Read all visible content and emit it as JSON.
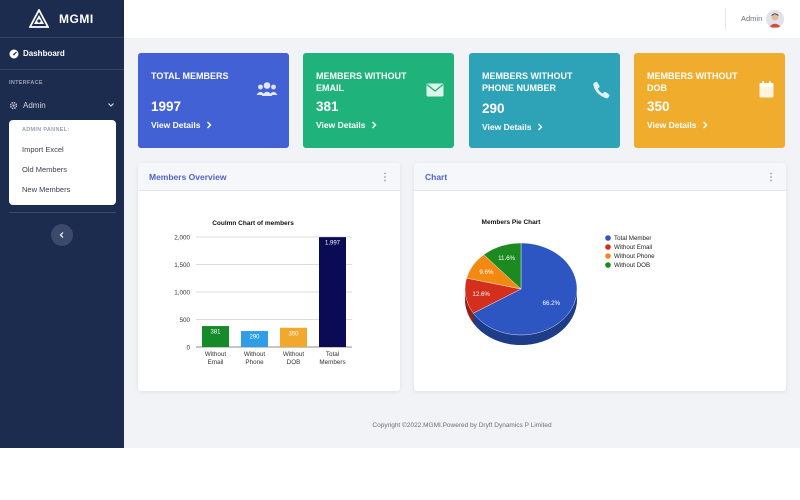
{
  "brand": {
    "name": "MGMI"
  },
  "sidebar": {
    "dashboard_label": "Dashboard",
    "section_heading": "INTERFACE",
    "admin_label": "Admin",
    "submenu": {
      "heading": "ADMIN PANNEL:",
      "items": [
        {
          "label": "Import Excel"
        },
        {
          "label": "Old Members"
        },
        {
          "label": "New Members"
        }
      ]
    }
  },
  "topbar": {
    "user_name": "Admin"
  },
  "cards": [
    {
      "title": "TOTAL MEMBERS",
      "value": "1997",
      "link": "View Details",
      "color": "#4261d4",
      "icon": "users-icon"
    },
    {
      "title": "MEMBERS WITHOUT EMAIL",
      "value": "381",
      "link": "View Details",
      "color": "#1fb37b",
      "icon": "envelope-icon"
    },
    {
      "title": "MEMBERS WITHOUT PHONE NUMBER",
      "value": "290",
      "link": "View Details",
      "color": "#2ea3b8",
      "icon": "phone-icon"
    },
    {
      "title": "MEMBERS WITHOUT DOB",
      "value": "350",
      "link": "View Details",
      "color": "#f0ad2d",
      "icon": "calendar-icon"
    }
  ],
  "panels": {
    "overview_title": "Members Overview",
    "chart_title": "Chart"
  },
  "chart_data": [
    {
      "type": "bar",
      "title": "Coulmn Chart of members",
      "categories": [
        "Without Email",
        "Without Phone",
        "Without DOB",
        "Total Members"
      ],
      "values": [
        381,
        290,
        350,
        1997
      ],
      "value_labels": [
        "381",
        "290",
        "350",
        "1,997"
      ],
      "colors": [
        "#168a2a",
        "#2f9ee6",
        "#f2a72d",
        "#0a0a55"
      ],
      "yticks": [
        "0",
        "500",
        "1,000",
        "1,500",
        "2,000"
      ],
      "ylim": [
        0,
        2000
      ],
      "grid": true,
      "xlabel": "",
      "ylabel": ""
    },
    {
      "type": "pie",
      "title": "Members Pie Chart",
      "labels": [
        "Total Member",
        "Without Email",
        "Without Phone",
        "Without DOB"
      ],
      "values": [
        66.2,
        12.6,
        9.6,
        11.6
      ],
      "value_labels": [
        "66.2%",
        "12.6%",
        "9.6%",
        "11.6%"
      ],
      "colors": [
        "#2d56c2",
        "#d32f1c",
        "#f28a12",
        "#1b8a1f"
      ],
      "legend": "right"
    }
  ],
  "footer": {
    "text": "Copyright ©2022.MGMI.Powered by Dryft Dynamics P Limited"
  }
}
